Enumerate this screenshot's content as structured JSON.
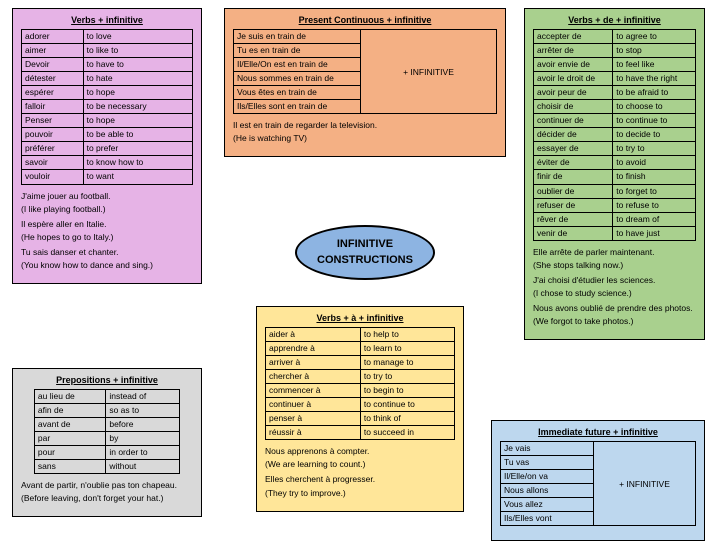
{
  "central": {
    "line1": "INFINITIVE",
    "line2": "CONSTRUCTIONS",
    "bg": "#8db4e2"
  },
  "panels": {
    "verbs_inf": {
      "title": "Verbs + infinitive",
      "bg": "#e6b3e6",
      "rows": [
        [
          "adorer",
          "to love"
        ],
        [
          "aimer",
          "to like to"
        ],
        [
          "Devoir",
          "to have to"
        ],
        [
          "détester",
          "to hate"
        ],
        [
          "espérer",
          "to hope"
        ],
        [
          "falloir",
          "to be necessary"
        ],
        [
          "Penser",
          "to hope"
        ],
        [
          "pouvoir",
          "to be able to"
        ],
        [
          "préférer",
          "to prefer"
        ],
        [
          "savoir",
          "to know how to"
        ],
        [
          "vouloir",
          "to want"
        ]
      ],
      "examples": [
        [
          "J'aime jouer au football.",
          "(I like playing football.)"
        ],
        [
          "Il espère aller en Italie.",
          "(He hopes to go to Italy.)"
        ],
        [
          "Tu sais danser et chanter.",
          "(You know how to dance and sing.)"
        ]
      ]
    },
    "pres_cont": {
      "title": "Present Continuous + infinitive",
      "bg": "#f4b084",
      "rows": [
        [
          "Je suis en train de"
        ],
        [
          "Tu es en train de"
        ],
        [
          "Il/Elle/On est en train de"
        ],
        [
          "Nous sommes en train de"
        ],
        [
          "Vous êtes en train de"
        ],
        [
          "Ils/Elles sont en train de"
        ]
      ],
      "side": "+ INFINITIVE",
      "examples": [
        [
          "Il est en train de regarder la television.",
          "(He is watching TV)"
        ]
      ]
    },
    "verbs_de": {
      "title": "Verbs + de + infinitive",
      "bg": "#a9d08e",
      "rows": [
        [
          "accepter de",
          "to agree to"
        ],
        [
          "arrêter de",
          "to stop"
        ],
        [
          "avoir envie de",
          "to feel like"
        ],
        [
          "avoir le droit de",
          "to have the right"
        ],
        [
          "avoir peur de",
          "to be afraid to"
        ],
        [
          "choisir de",
          "to choose to"
        ],
        [
          "continuer de",
          "to continue to"
        ],
        [
          "décider de",
          "to decide to"
        ],
        [
          "essayer de",
          "to try to"
        ],
        [
          "éviter de",
          "to avoid"
        ],
        [
          "finir de",
          "to finish"
        ],
        [
          "oublier de",
          "to forget to"
        ],
        [
          "refuser de",
          "to refuse to"
        ],
        [
          "rêver de",
          "to dream of"
        ],
        [
          "venir de",
          "to have just"
        ]
      ],
      "examples": [
        [
          "Elle arrête de parler maintenant.",
          "(She stops talking now.)"
        ],
        [
          "J'ai choisi d'étudier les sciences.",
          "(I chose to study science.)"
        ],
        [
          "Nous avons oublié de prendre des photos.",
          "(We forgot to take photos.)"
        ]
      ]
    },
    "verbs_a": {
      "title": "Verbs + à + infinitive",
      "bg": "#ffe699",
      "rows": [
        [
          "aider à",
          "to help to"
        ],
        [
          "apprendre à",
          "to learn to"
        ],
        [
          "arriver à",
          "to manage to"
        ],
        [
          "chercher à",
          "to try to"
        ],
        [
          "commencer à",
          "to begin to"
        ],
        [
          "continuer à",
          "to continue to"
        ],
        [
          "penser à",
          "to think of"
        ],
        [
          "réussir à",
          "to succeed in"
        ]
      ],
      "examples": [
        [
          "Nous apprenons à compter.",
          "(We are learning to count.)"
        ],
        [
          "Elles cherchent à progresser.",
          "(They try to improve.)"
        ]
      ]
    },
    "prep_inf": {
      "title": "Prepositions + infinitive",
      "bg": "#d9d9d9",
      "rows": [
        [
          "au lieu de",
          "instead of"
        ],
        [
          "afin de",
          "so as to"
        ],
        [
          "avant de",
          "before"
        ],
        [
          "par",
          "by"
        ],
        [
          "pour",
          "in order to"
        ],
        [
          "sans",
          "without"
        ]
      ],
      "examples": [
        [
          "Avant de partir, n'oublie pas ton chapeau.",
          "(Before leaving, don't forget your hat.)"
        ]
      ]
    },
    "imm_future": {
      "title": "Immediate future + infinitive",
      "bg": "#bdd7ee",
      "rows": [
        [
          "Je vais"
        ],
        [
          "Tu vas"
        ],
        [
          "Il/Elle/on va"
        ],
        [
          "Nous allons"
        ],
        [
          "Vous allez"
        ],
        [
          "Ils/Elles vont"
        ]
      ],
      "side": "+ INFINITIVE"
    }
  }
}
